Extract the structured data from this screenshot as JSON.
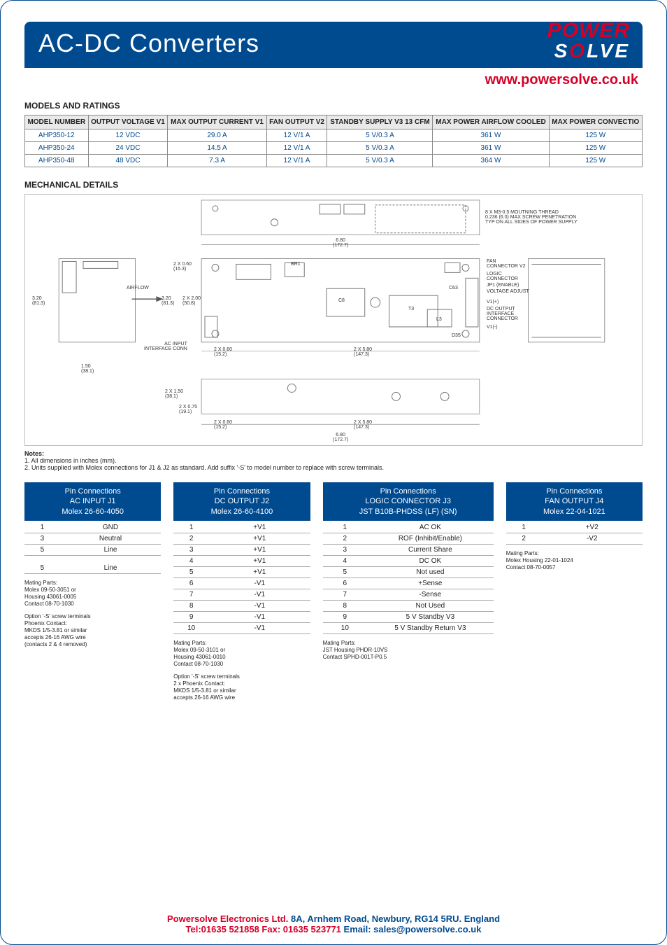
{
  "header": {
    "title": "AC-DC Converters",
    "logo_top": "POWER",
    "logo_bottom_s": "S",
    "logo_bottom_o": "O",
    "logo_bottom_rest": "LVE",
    "url": "www.powersolve.co.uk"
  },
  "ratings": {
    "title": "MODELS AND RATINGS",
    "cols": [
      "MODEL NUMBER",
      "OUTPUT VOLTAGE V1",
      "MAX OUTPUT CURRENT V1",
      "FAN OUTPUT V2",
      "STANDBY SUPPLY V3 13 CFM",
      "MAX POWER AIRFLOW COOLED",
      "MAX POWER CONVECTIO"
    ],
    "rows": [
      [
        "AHP350-12",
        "12 VDC",
        "29.0 A",
        "12 V/1 A",
        "5 V/0.3 A",
        "361 W",
        "125 W"
      ],
      [
        "AHP350-24",
        "24 VDC",
        "14.5 A",
        "12 V/1 A",
        "5 V/0.3 A",
        "361 W",
        "125 W"
      ],
      [
        "AHP350-48",
        "48 VDC",
        "7.3 A",
        "12 V/1 A",
        "5 V/0.3 A",
        "364 W",
        "125 W"
      ]
    ]
  },
  "mech": {
    "title": "MECHANICAL DETAILS",
    "dim_680": "6.80",
    "dim_680mm": "(172.7)",
    "dim_320": "3.20",
    "dim_320mm": "(81.3)",
    "dim_150": "1.50",
    "dim_150mm": "(38.1)",
    "dim_2x060": "2 X 0.60",
    "dim_2x060mm": "(15.3)",
    "dim_2x200": "2 X 2.00",
    "dim_2x200mm": "(50.8)",
    "dim_2x060b": "2 X 0.60",
    "dim_2x060bmm": "(15.2)",
    "dim_2x580": "2 X 5.80",
    "dim_2x580mm": "(147.3)",
    "dim_2x150": "2 X 1.50",
    "dim_2x150mm": "(38.1)",
    "dim_2x075": "2 X 0.75",
    "dim_2x075mm": "(19.1)",
    "thread": "8 X M3-0.5 MOUTNING THREAD\n0.236 (6.0) MAX SCREW PENETRATION\nTYP ON ALL SIDES OF POWER SUPPLY",
    "airflow": "AIRFLOW",
    "acinput": "AC INPUT\nINTERFACE CONN",
    "fanconn": "FAN\nCONNECTOR V2",
    "logicconn": "LOGIC\nCONNECTOR",
    "jp1": "JP1 (ENABLE)",
    "vadj": "VOLTAGE ADJUST",
    "v1p": "V1(+)",
    "dcout": "DC OUTPUT\nINTERFACE\nCONNECTOR",
    "v1n": "V1(-)",
    "br1": "BR1",
    "c8": "C8",
    "t3": "T3",
    "l3": "L3",
    "c63": "C63",
    "d35": "D35"
  },
  "notes": {
    "title": "Notes:",
    "n1": "1. All dimensions in inches (mm).",
    "n2": "2. Units supplied with Molex connections for J1 & J2 as standard. Add suffix '-S' to model number to replace with screw terminals."
  },
  "pins": {
    "j1": {
      "head1": "Pin Connections",
      "head2": "AC INPUT J1",
      "head3": "Molex 26-60-4050",
      "rows": [
        [
          "1",
          "GND"
        ],
        [
          "3",
          "Neutral"
        ],
        [
          "5",
          "Line"
        ]
      ],
      "rows2": [
        [
          "5",
          "Line"
        ]
      ],
      "mates": "Mating Parts:\nMolex 09-50-3051 or\nHousing 43061-0005\nContact 08-70-1030",
      "opt": "Option '-S' screw terminals\nPhoenix Contact:\nMKDS 1/5-3.81 or similar\naccepts 26-16 AWG wire\n(contacts 2 & 4 removed)"
    },
    "j2": {
      "head1": "Pin Connections",
      "head2": "DC OUTPUT J2",
      "head3": "Molex 26-60-4100",
      "rows": [
        [
          "1",
          "+V1"
        ],
        [
          "2",
          "+V1"
        ],
        [
          "3",
          "+V1"
        ],
        [
          "4",
          "+V1"
        ],
        [
          "5",
          "+V1"
        ],
        [
          "6",
          "-V1"
        ],
        [
          "7",
          "-V1"
        ],
        [
          "8",
          "-V1"
        ],
        [
          "9",
          "-V1"
        ],
        [
          "10",
          "-V1"
        ]
      ],
      "mates": "Mating Parts:\nMolex 09-50-3101 or\nHousing 43061-0010\nContact 08-70-1030",
      "opt": "Option '-S' screw terminals\n2 x Phoenix Contact:\nMKDS 1/5-3.81 or similar\naccepts 26-16 AWG wire"
    },
    "j3": {
      "head1": "Pin Connections",
      "head2": "LOGIC CONNECTOR J3",
      "head3": "JST B10B-PHDSS (LF) (SN)",
      "rows": [
        [
          "1",
          "AC OK"
        ],
        [
          "2",
          "ROF (Inhibit/Enable)"
        ],
        [
          "3",
          "Current Share"
        ],
        [
          "4",
          "DC OK"
        ],
        [
          "5",
          "Not used"
        ],
        [
          "6",
          "+Sense"
        ],
        [
          "7",
          "-Sense"
        ],
        [
          "8",
          "Not Used"
        ],
        [
          "9",
          "5 V Standby V3"
        ],
        [
          "10",
          "5 V Standby Return V3"
        ]
      ],
      "mates": "Mating Parts:\nJST Housing PHDR-10VS\nContact SPHD-001T-P0.5"
    },
    "j4": {
      "head1": "Pin Connections",
      "head2": "FAN OUTPUT J4",
      "head3": "Molex 22-04-1021",
      "rows": [
        [
          "1",
          "+V2"
        ],
        [
          "2",
          "-V2"
        ]
      ],
      "mates": "Mating Parts:\nMolex Housing 22-01-1024\nContact 08-70-0057"
    }
  },
  "footer": {
    "l1a": "Powersolve Electronics Ltd.",
    "l1b": "  8A, Arnhem Road, Newbury, RG14 5RU. England",
    "l2a": "Tel:01635 521858  Fax: 01635 523771",
    "l2b": " Email: sales@powersolve.co.uk"
  }
}
